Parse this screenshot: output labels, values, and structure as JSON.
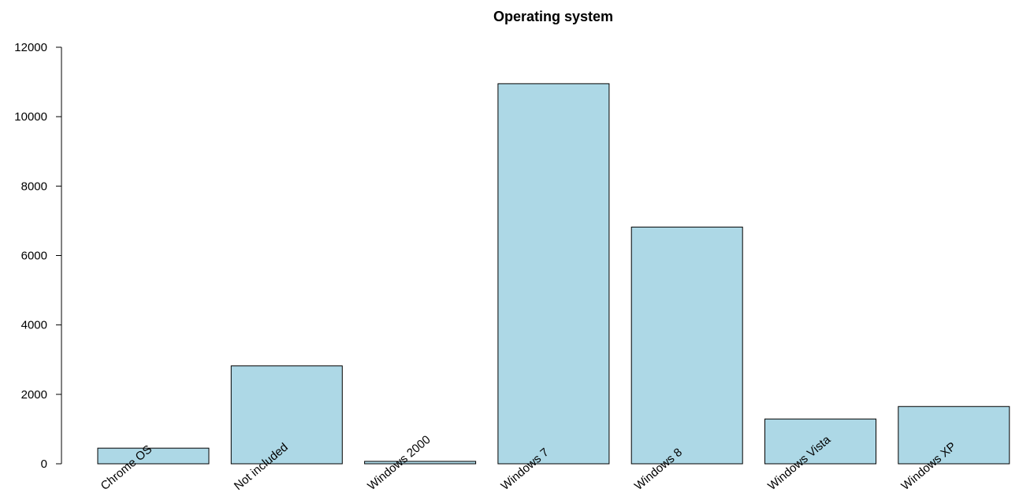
{
  "chart_data": {
    "type": "bar",
    "title": "Operating system",
    "xlabel": "",
    "ylabel": "",
    "categories": [
      "Chrome OS",
      "Not included",
      "Windows 2000",
      "Windows 7",
      "Windows 8",
      "Windows Vista",
      "Windows XP"
    ],
    "values": [
      450,
      2820,
      70,
      10950,
      6820,
      1290,
      1650
    ],
    "ylim": [
      0,
      12000
    ],
    "yticks": [
      0,
      2000,
      4000,
      6000,
      8000,
      10000,
      12000
    ],
    "grid": false,
    "legend": "none",
    "bar_color": "#add8e6"
  }
}
